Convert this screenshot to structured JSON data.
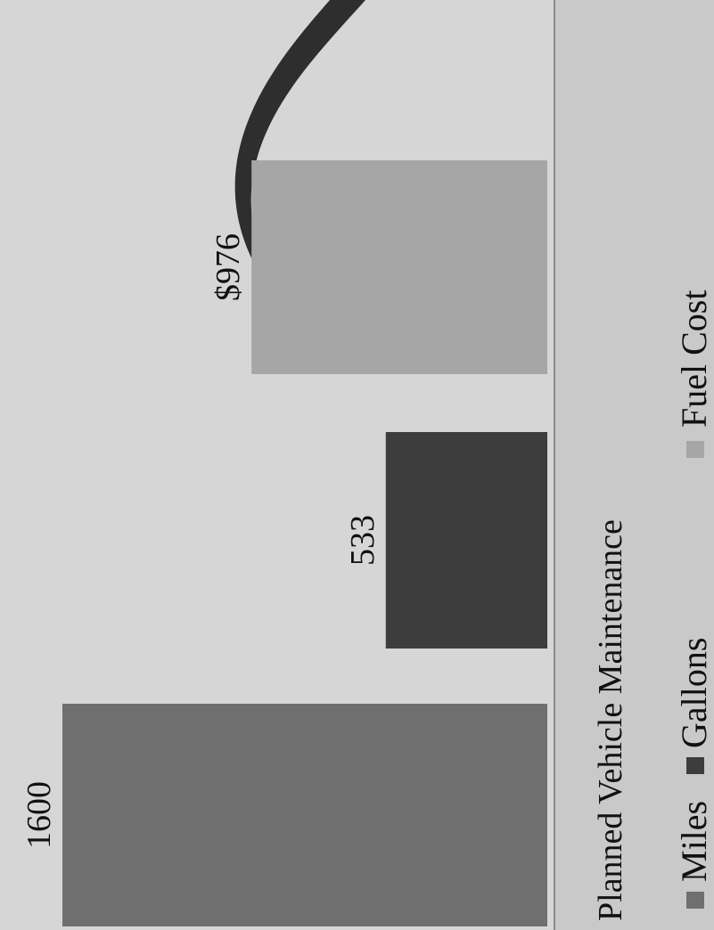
{
  "chart_data": {
    "type": "bar",
    "title": "Planned Vehicle Maintenance",
    "categories": [
      "Miles",
      "Gallons",
      "Fuel Cost"
    ],
    "values": [
      1600,
      533,
      976
    ],
    "data_labels": [
      "1600",
      "533",
      "$976"
    ],
    "legend": [
      {
        "label": "Miles",
        "color": "#6f6f6f"
      },
      {
        "label": "Gallons",
        "color": "#3d3d3d"
      },
      {
        "label": "Fuel Cost",
        "color": "#a6a6a6"
      }
    ],
    "legend_placement": "bottom",
    "orientation": "rotated-90-ccw",
    "ylim": [
      0,
      1600
    ],
    "grid": false,
    "colors": {
      "background": "#c9c9c9",
      "plot_area": "#d6d6d6",
      "decoration": "#2e2e2e",
      "axis": "#888888"
    }
  }
}
